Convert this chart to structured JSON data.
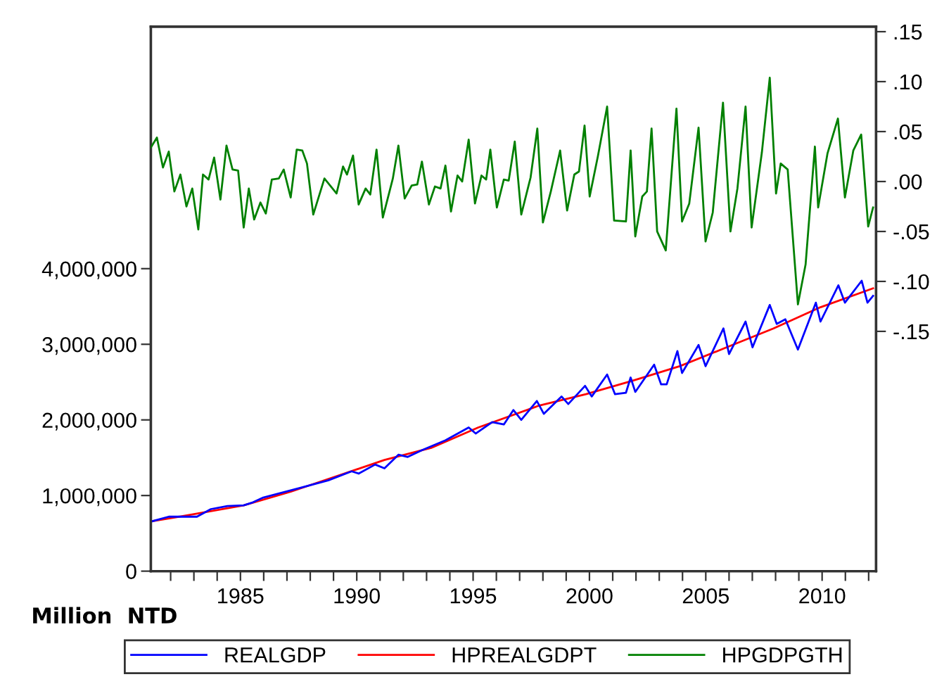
{
  "chart_data": {
    "type": "line",
    "ylabel": "Million  NTD",
    "legend": "bottom",
    "grid": false,
    "xlim": [
      1981.15,
      2012.32
    ],
    "xticks": [
      {
        "value": 1982,
        "label": null
      },
      {
        "value": 1983,
        "label": null
      },
      {
        "value": 1984,
        "label": null
      },
      1985,
      {
        "value": 1986,
        "label": null
      },
      {
        "value": 1987,
        "label": null
      },
      {
        "value": 1988,
        "label": null
      },
      {
        "value": 1989,
        "label": null
      },
      1990,
      {
        "value": 1991,
        "label": null
      },
      {
        "value": 1992,
        "label": null
      },
      {
        "value": 1993,
        "label": null
      },
      {
        "value": 1994,
        "label": null
      },
      1995,
      {
        "value": 1996,
        "label": null
      },
      {
        "value": 1997,
        "label": null
      },
      {
        "value": 1998,
        "label": null
      },
      {
        "value": 1999,
        "label": null
      },
      2000,
      {
        "value": 2001,
        "label": null
      },
      {
        "value": 2002,
        "label": null
      },
      {
        "value": 2003,
        "label": null
      },
      {
        "value": 2004,
        "label": null
      },
      2005,
      {
        "value": 2006,
        "label": null
      },
      {
        "value": 2007,
        "label": null
      },
      {
        "value": 2008,
        "label": null
      },
      {
        "value": 2009,
        "label": null
      },
      2010,
      {
        "value": 2011,
        "label": null
      },
      {
        "value": 2012,
        "label": null
      }
    ],
    "ylim": [
      0,
      7200000
    ],
    "yticks": [
      0,
      {
        "value": 1000000,
        "label": "1,000,000"
      },
      {
        "value": 2000000,
        "label": "2,000,000"
      },
      {
        "value": 3000000,
        "label": "3,000,000"
      },
      {
        "value": 4000000,
        "label": "4,000,000"
      }
    ],
    "y2lim": [
      -0.39,
      0.155
    ],
    "y2ticks": [
      {
        "value": 0.15,
        "label": ".15"
      },
      {
        "value": 0.1,
        "label": ".10"
      },
      {
        "value": 0.05,
        "label": ".05"
      },
      {
        "value": 0,
        "label": ".00"
      },
      {
        "value": -0.05,
        "label": "-.05"
      },
      {
        "value": -0.1,
        "label": "-.10"
      },
      {
        "value": -0.15,
        "label": "-.15"
      }
    ],
    "series": [
      {
        "name": "REALGDP",
        "color": "#0000ff",
        "x": [
          1981.21,
          1981.92,
          1983.13,
          1983.73,
          1984.44,
          1985.14,
          1985.54,
          1985.95,
          1987.56,
          1988.77,
          1989.78,
          1990.08,
          1990.79,
          1991.19,
          1991.79,
          1992.19,
          1992.8,
          1993.81,
          1994.81,
          1995.11,
          1995.82,
          1996.32,
          1996.73,
          1997.07,
          1997.74,
          1998.04,
          1998.8,
          1999.09,
          1999.81,
          2000.1,
          2000.76,
          2001.1,
          2001.57,
          2001.77,
          2001.97,
          2002.78,
          2003.08,
          2003.32,
          2003.78,
          2003.98,
          2004.69,
          2004.99,
          2005.76,
          2006.0,
          2006.71,
          2007.01,
          2007.75,
          2008.05,
          2008.42,
          2008.96,
          2009.73,
          2009.93,
          2010.7,
          2010.98,
          2011.7,
          2011.95,
          2012.19
        ],
        "values": [
          660000,
          720000,
          720000,
          820000,
          860000,
          870000,
          910000,
          970000,
          1100000,
          1200000,
          1320000,
          1290000,
          1410000,
          1360000,
          1540000,
          1510000,
          1600000,
          1730000,
          1900000,
          1820000,
          1970000,
          1940000,
          2130000,
          2000000,
          2250000,
          2080000,
          2310000,
          2210000,
          2450000,
          2310000,
          2600000,
          2340000,
          2360000,
          2560000,
          2370000,
          2730000,
          2470000,
          2470000,
          2910000,
          2620000,
          2990000,
          2710000,
          3210000,
          2870000,
          3300000,
          2960000,
          3520000,
          3270000,
          3330000,
          2930000,
          3550000,
          3300000,
          3780000,
          3550000,
          3840000,
          3550000,
          3640000
        ]
      },
      {
        "name": "HPREALGDPT",
        "color": "#ff0000",
        "x": [
          1981.21,
          1983.13,
          1985.14,
          1987.16,
          1989.17,
          1991.19,
          1993.2,
          1995.22,
          1997.84,
          1999.85,
          2001.87,
          2003.88,
          2005.9,
          2007.91,
          2009.93,
          2012.19
        ],
        "values": [
          660000,
          760000,
          870000,
          1050000,
          1260000,
          1470000,
          1630000,
          1900000,
          2190000,
          2340000,
          2520000,
          2710000,
          2960000,
          3210000,
          3490000,
          3740000
        ]
      },
      {
        "name": "HPGDPGTH",
        "color": "#008000",
        "axis": "y2",
        "x": [
          1981.15,
          1981.41,
          1981.67,
          1981.92,
          1982.16,
          1982.42,
          1982.68,
          1982.93,
          1983.19,
          1983.39,
          1983.63,
          1983.87,
          1984.14,
          1984.4,
          1984.66,
          1984.9,
          1985.14,
          1985.36,
          1985.59,
          1985.86,
          1986.09,
          1986.35,
          1986.65,
          1986.86,
          1987.16,
          1987.42,
          1987.66,
          1987.86,
          1988.13,
          1988.61,
          1989.13,
          1989.41,
          1989.58,
          1989.84,
          1990.08,
          1990.38,
          1990.58,
          1990.85,
          1991.12,
          1991.55,
          1991.79,
          1992.06,
          1992.36,
          1992.6,
          1992.8,
          1993.1,
          1993.36,
          1993.6,
          1993.81,
          1994.05,
          1994.33,
          1994.53,
          1994.81,
          1995.08,
          1995.36,
          1995.56,
          1995.74,
          1996.02,
          1996.32,
          1996.53,
          1996.79,
          1997.07,
          1997.47,
          1997.76,
          1998.0,
          1998.34,
          1998.74,
          1999.04,
          1999.35,
          1999.55,
          1999.79,
          2000.01,
          2000.36,
          2000.76,
          2001.06,
          2001.57,
          2001.77,
          2001.97,
          2002.27,
          2002.47,
          2002.67,
          2002.91,
          2003.28,
          2003.74,
          2003.98,
          2004.29,
          2004.69,
          2004.99,
          2005.3,
          2005.74,
          2006.06,
          2006.36,
          2006.71,
          2006.97,
          2007.41,
          2007.75,
          2008.02,
          2008.22,
          2008.52,
          2008.96,
          2009.29,
          2009.69,
          2009.83,
          2010.23,
          2010.68,
          2010.98,
          2011.34,
          2011.68,
          2011.98,
          2012.19
        ],
        "values": [
          0.034,
          0.044,
          0.014,
          0.03,
          -0.01,
          0.007,
          -0.025,
          -0.007,
          -0.048,
          0.007,
          0.002,
          0.024,
          -0.018,
          0.036,
          0.012,
          0.011,
          -0.046,
          -0.007,
          -0.038,
          -0.021,
          -0.032,
          0.002,
          0.003,
          0.012,
          -0.016,
          0.032,
          0.031,
          0.018,
          -0.033,
          0.003,
          -0.012,
          0.015,
          0.007,
          0.026,
          -0.023,
          -0.007,
          -0.013,
          0.032,
          -0.036,
          0.003,
          0.036,
          -0.017,
          -0.004,
          -0.003,
          0.02,
          -0.023,
          -0.005,
          -0.007,
          0.016,
          -0.03,
          0.006,
          0.0,
          0.042,
          -0.022,
          0.006,
          0.002,
          0.032,
          -0.026,
          0.002,
          0.001,
          0.04,
          -0.033,
          0.004,
          0.053,
          -0.041,
          -0.01,
          0.031,
          -0.029,
          0.007,
          0.01,
          0.056,
          -0.015,
          0.025,
          0.075,
          -0.039,
          -0.04,
          0.031,
          -0.055,
          -0.015,
          -0.01,
          0.053,
          -0.05,
          -0.069,
          0.073,
          -0.04,
          -0.022,
          0.054,
          -0.06,
          -0.031,
          0.079,
          -0.05,
          -0.007,
          0.075,
          -0.046,
          0.029,
          0.104,
          -0.012,
          0.018,
          0.012,
          -0.123,
          -0.083,
          0.035,
          -0.026,
          0.028,
          0.063,
          -0.016,
          0.031,
          0.047,
          -0.045,
          -0.026
        ]
      }
    ]
  }
}
